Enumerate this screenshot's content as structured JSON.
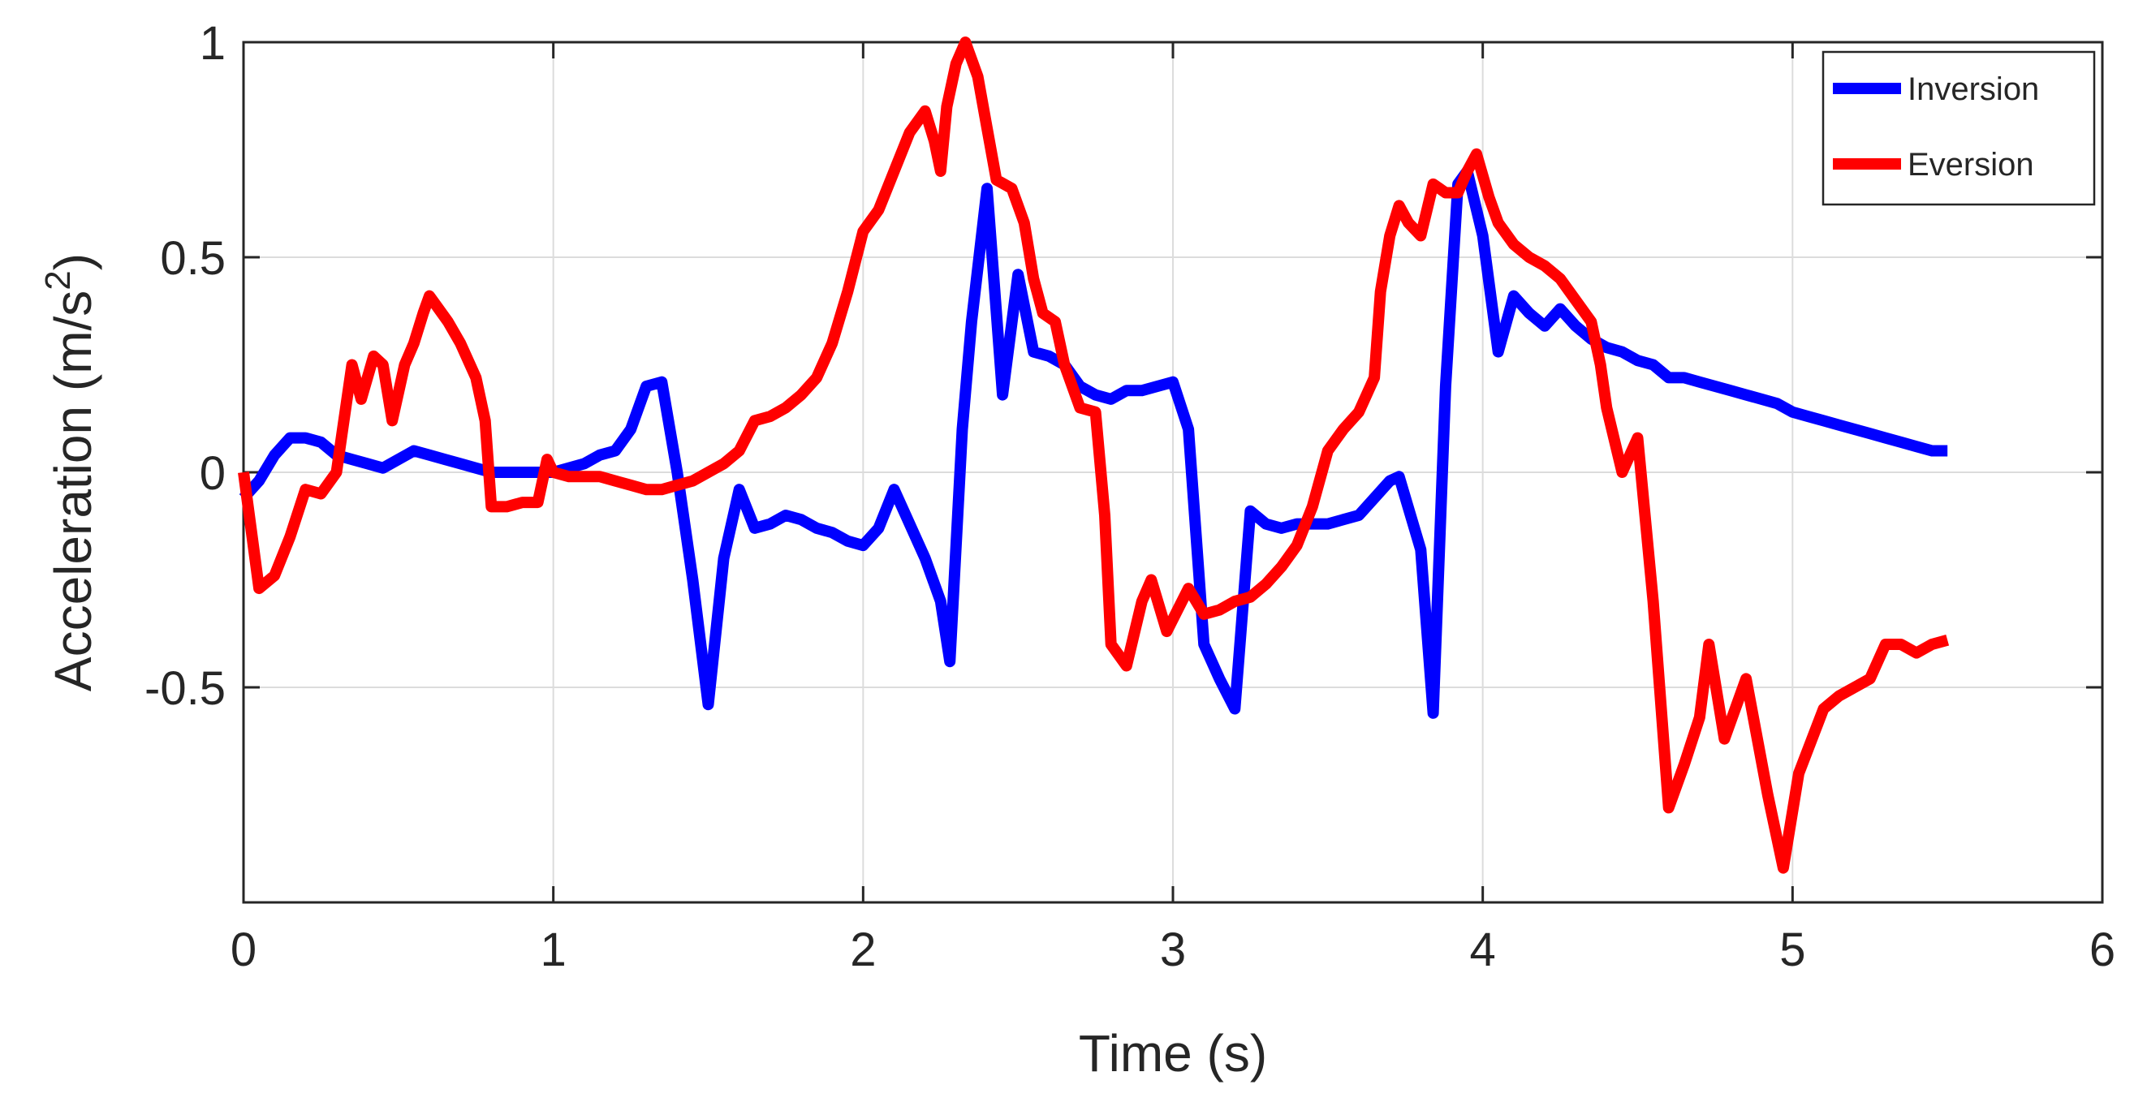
{
  "chart_data": {
    "type": "line",
    "title": "",
    "xlabel": "Time (s)",
    "ylabel_main": "Acceleration (m/s",
    "ylabel_sup": "2",
    "ylabel_close": ")",
    "xlim": [
      0,
      6
    ],
    "ylim": [
      -1,
      1
    ],
    "xticks": [
      0,
      1,
      2,
      3,
      4,
      5,
      6
    ],
    "xtick_labels": [
      "0",
      "1",
      "2",
      "3",
      "4",
      "5",
      "6"
    ],
    "yticks": [
      -0.5,
      0,
      0.5,
      1
    ],
    "ytick_labels": [
      "-0.5",
      "0",
      "0.5",
      "1"
    ],
    "grid": true,
    "legend_position": "top-right",
    "series": [
      {
        "name": "Inversion",
        "color": "#0000ff",
        "points": [
          [
            0.0,
            -0.06
          ],
          [
            0.05,
            -0.02
          ],
          [
            0.1,
            0.04
          ],
          [
            0.15,
            0.08
          ],
          [
            0.2,
            0.08
          ],
          [
            0.25,
            0.07
          ],
          [
            0.3,
            0.04
          ],
          [
            0.35,
            0.03
          ],
          [
            0.4,
            0.02
          ],
          [
            0.45,
            0.01
          ],
          [
            0.5,
            0.03
          ],
          [
            0.55,
            0.05
          ],
          [
            0.6,
            0.04
          ],
          [
            0.65,
            0.03
          ],
          [
            0.7,
            0.02
          ],
          [
            0.75,
            0.01
          ],
          [
            0.8,
            0.0
          ],
          [
            0.9,
            0.0
          ],
          [
            0.95,
            0.0
          ],
          [
            1.0,
            0.0
          ],
          [
            1.1,
            0.02
          ],
          [
            1.15,
            0.04
          ],
          [
            1.2,
            0.05
          ],
          [
            1.25,
            0.1
          ],
          [
            1.3,
            0.2
          ],
          [
            1.35,
            0.21
          ],
          [
            1.4,
            0.0
          ],
          [
            1.45,
            -0.25
          ],
          [
            1.5,
            -0.54
          ],
          [
            1.55,
            -0.2
          ],
          [
            1.6,
            -0.04
          ],
          [
            1.65,
            -0.13
          ],
          [
            1.7,
            -0.12
          ],
          [
            1.75,
            -0.1
          ],
          [
            1.8,
            -0.11
          ],
          [
            1.85,
            -0.13
          ],
          [
            1.9,
            -0.14
          ],
          [
            1.95,
            -0.16
          ],
          [
            2.0,
            -0.17
          ],
          [
            2.05,
            -0.13
          ],
          [
            2.1,
            -0.04
          ],
          [
            2.15,
            -0.12
          ],
          [
            2.2,
            -0.2
          ],
          [
            2.25,
            -0.3
          ],
          [
            2.28,
            -0.44
          ],
          [
            2.32,
            0.1
          ],
          [
            2.35,
            0.35
          ],
          [
            2.4,
            0.66
          ],
          [
            2.45,
            0.18
          ],
          [
            2.5,
            0.46
          ],
          [
            2.55,
            0.28
          ],
          [
            2.6,
            0.27
          ],
          [
            2.65,
            0.25
          ],
          [
            2.7,
            0.2
          ],
          [
            2.75,
            0.18
          ],
          [
            2.8,
            0.17
          ],
          [
            2.85,
            0.19
          ],
          [
            2.9,
            0.19
          ],
          [
            2.95,
            0.2
          ],
          [
            3.0,
            0.21
          ],
          [
            3.05,
            0.1
          ],
          [
            3.1,
            -0.4
          ],
          [
            3.15,
            -0.48
          ],
          [
            3.2,
            -0.55
          ],
          [
            3.25,
            -0.09
          ],
          [
            3.3,
            -0.12
          ],
          [
            3.35,
            -0.13
          ],
          [
            3.4,
            -0.12
          ],
          [
            3.45,
            -0.12
          ],
          [
            3.5,
            -0.12
          ],
          [
            3.55,
            -0.11
          ],
          [
            3.6,
            -0.1
          ],
          [
            3.65,
            -0.06
          ],
          [
            3.7,
            -0.02
          ],
          [
            3.73,
            -0.01
          ],
          [
            3.8,
            -0.18
          ],
          [
            3.84,
            -0.56
          ],
          [
            3.88,
            0.2
          ],
          [
            3.92,
            0.67
          ],
          [
            3.95,
            0.7
          ],
          [
            4.0,
            0.55
          ],
          [
            4.05,
            0.28
          ],
          [
            4.1,
            0.41
          ],
          [
            4.15,
            0.37
          ],
          [
            4.2,
            0.34
          ],
          [
            4.25,
            0.38
          ],
          [
            4.3,
            0.34
          ],
          [
            4.35,
            0.31
          ],
          [
            4.4,
            0.29
          ],
          [
            4.45,
            0.28
          ],
          [
            4.5,
            0.26
          ],
          [
            4.55,
            0.25
          ],
          [
            4.6,
            0.22
          ],
          [
            4.65,
            0.22
          ],
          [
            4.7,
            0.21
          ],
          [
            4.75,
            0.2
          ],
          [
            4.8,
            0.19
          ],
          [
            4.85,
            0.18
          ],
          [
            4.9,
            0.17
          ],
          [
            4.95,
            0.16
          ],
          [
            5.0,
            0.14
          ],
          [
            5.05,
            0.13
          ],
          [
            5.1,
            0.12
          ],
          [
            5.15,
            0.11
          ],
          [
            5.2,
            0.1
          ],
          [
            5.25,
            0.09
          ],
          [
            5.3,
            0.08
          ],
          [
            5.35,
            0.07
          ],
          [
            5.4,
            0.06
          ],
          [
            5.45,
            0.05
          ],
          [
            5.5,
            0.05
          ]
        ]
      },
      {
        "name": "Eversion",
        "color": "#ff0000",
        "points": [
          [
            0.0,
            0.0
          ],
          [
            0.05,
            -0.27
          ],
          [
            0.1,
            -0.24
          ],
          [
            0.15,
            -0.15
          ],
          [
            0.2,
            -0.04
          ],
          [
            0.25,
            -0.05
          ],
          [
            0.3,
            0.0
          ],
          [
            0.32,
            0.1
          ],
          [
            0.35,
            0.25
          ],
          [
            0.38,
            0.17
          ],
          [
            0.42,
            0.27
          ],
          [
            0.45,
            0.25
          ],
          [
            0.48,
            0.12
          ],
          [
            0.52,
            0.25
          ],
          [
            0.55,
            0.3
          ],
          [
            0.58,
            0.37
          ],
          [
            0.6,
            0.41
          ],
          [
            0.63,
            0.38
          ],
          [
            0.66,
            0.35
          ],
          [
            0.7,
            0.3
          ],
          [
            0.75,
            0.22
          ],
          [
            0.78,
            0.12
          ],
          [
            0.8,
            -0.08
          ],
          [
            0.85,
            -0.08
          ],
          [
            0.9,
            -0.07
          ],
          [
            0.95,
            -0.07
          ],
          [
            0.98,
            0.03
          ],
          [
            1.0,
            0.0
          ],
          [
            1.05,
            -0.01
          ],
          [
            1.1,
            -0.01
          ],
          [
            1.15,
            -0.01
          ],
          [
            1.2,
            -0.02
          ],
          [
            1.25,
            -0.03
          ],
          [
            1.3,
            -0.04
          ],
          [
            1.35,
            -0.04
          ],
          [
            1.4,
            -0.03
          ],
          [
            1.45,
            -0.02
          ],
          [
            1.5,
            0.0
          ],
          [
            1.55,
            0.02
          ],
          [
            1.6,
            0.05
          ],
          [
            1.65,
            0.12
          ],
          [
            1.7,
            0.13
          ],
          [
            1.75,
            0.15
          ],
          [
            1.8,
            0.18
          ],
          [
            1.85,
            0.22
          ],
          [
            1.9,
            0.3
          ],
          [
            1.95,
            0.42
          ],
          [
            2.0,
            0.56
          ],
          [
            2.05,
            0.61
          ],
          [
            2.1,
            0.7
          ],
          [
            2.15,
            0.79
          ],
          [
            2.2,
            0.84
          ],
          [
            2.23,
            0.77
          ],
          [
            2.25,
            0.7
          ],
          [
            2.27,
            0.85
          ],
          [
            2.3,
            0.95
          ],
          [
            2.33,
            1.0
          ],
          [
            2.37,
            0.92
          ],
          [
            2.4,
            0.8
          ],
          [
            2.43,
            0.68
          ],
          [
            2.48,
            0.66
          ],
          [
            2.52,
            0.58
          ],
          [
            2.55,
            0.45
          ],
          [
            2.58,
            0.37
          ],
          [
            2.62,
            0.35
          ],
          [
            2.65,
            0.25
          ],
          [
            2.7,
            0.15
          ],
          [
            2.75,
            0.14
          ],
          [
            2.78,
            -0.1
          ],
          [
            2.8,
            -0.4
          ],
          [
            2.85,
            -0.45
          ],
          [
            2.9,
            -0.3
          ],
          [
            2.93,
            -0.25
          ],
          [
            2.98,
            -0.37
          ],
          [
            3.05,
            -0.27
          ],
          [
            3.1,
            -0.33
          ],
          [
            3.15,
            -0.32
          ],
          [
            3.2,
            -0.3
          ],
          [
            3.25,
            -0.29
          ],
          [
            3.3,
            -0.26
          ],
          [
            3.35,
            -0.22
          ],
          [
            3.4,
            -0.17
          ],
          [
            3.45,
            -0.08
          ],
          [
            3.5,
            0.05
          ],
          [
            3.55,
            0.1
          ],
          [
            3.6,
            0.14
          ],
          [
            3.65,
            0.22
          ],
          [
            3.67,
            0.42
          ],
          [
            3.7,
            0.55
          ],
          [
            3.73,
            0.62
          ],
          [
            3.76,
            0.58
          ],
          [
            3.8,
            0.55
          ],
          [
            3.84,
            0.67
          ],
          [
            3.88,
            0.65
          ],
          [
            3.92,
            0.65
          ],
          [
            3.95,
            0.7
          ],
          [
            3.98,
            0.74
          ],
          [
            4.02,
            0.64
          ],
          [
            4.05,
            0.58
          ],
          [
            4.1,
            0.53
          ],
          [
            4.15,
            0.5
          ],
          [
            4.2,
            0.48
          ],
          [
            4.25,
            0.45
          ],
          [
            4.3,
            0.4
          ],
          [
            4.35,
            0.35
          ],
          [
            4.38,
            0.25
          ],
          [
            4.4,
            0.15
          ],
          [
            4.45,
            0.0
          ],
          [
            4.5,
            0.08
          ],
          [
            4.55,
            -0.3
          ],
          [
            4.6,
            -0.78
          ],
          [
            4.65,
            -0.68
          ],
          [
            4.7,
            -0.57
          ],
          [
            4.73,
            -0.4
          ],
          [
            4.78,
            -0.62
          ],
          [
            4.85,
            -0.48
          ],
          [
            4.92,
            -0.75
          ],
          [
            4.97,
            -0.92
          ],
          [
            5.02,
            -0.7
          ],
          [
            5.1,
            -0.55
          ],
          [
            5.15,
            -0.52
          ],
          [
            5.2,
            -0.5
          ],
          [
            5.25,
            -0.48
          ],
          [
            5.3,
            -0.4
          ],
          [
            5.35,
            -0.4
          ],
          [
            5.4,
            -0.42
          ],
          [
            5.45,
            -0.4
          ],
          [
            5.5,
            -0.39
          ]
        ]
      }
    ]
  }
}
